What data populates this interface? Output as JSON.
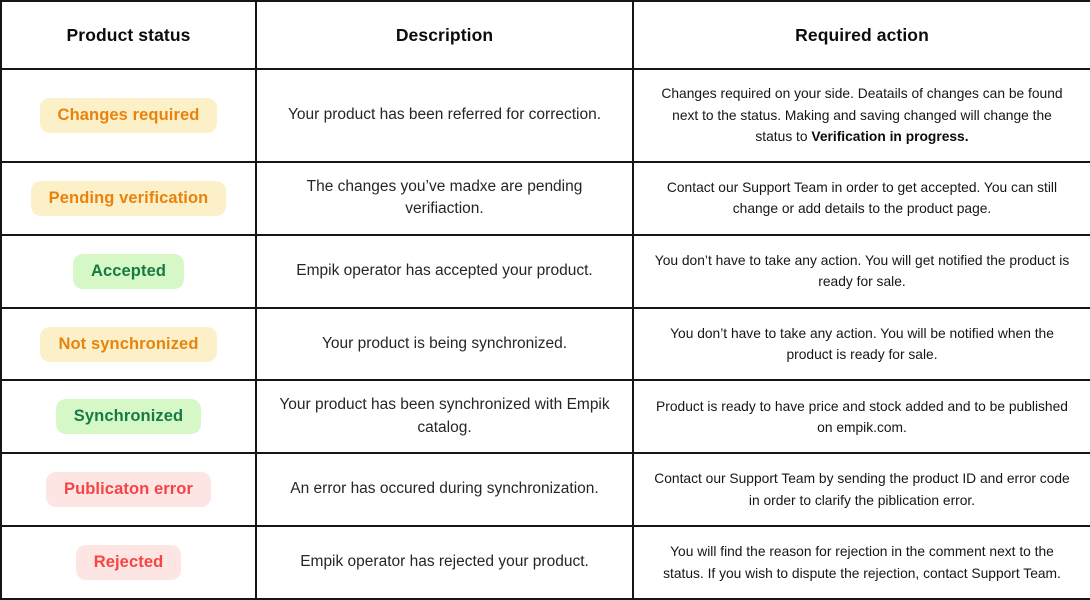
{
  "table": {
    "headers": [
      "Product status",
      "Description",
      "Required action"
    ],
    "rows": [
      {
        "status": "Changes required",
        "variant": "warning",
        "description": "Your product has been referred for correction.",
        "action": "Changes required on your side. Deatails of changes can be found next to the status. Making and saving changed will change the status to ",
        "action_bold": "Verification in progress."
      },
      {
        "status": "Pending verification",
        "variant": "warning",
        "description": "The changes you’ve madxe are pending verifiaction.",
        "action": "Contact our Support Team in order to get accepted. You can still change or add details to the product page.",
        "action_bold": ""
      },
      {
        "status": "Accepted",
        "variant": "success",
        "description": "Empik operator has accepted your product.",
        "action": "You don’t have to take any action. You will get notified the product is ready for sale.",
        "action_bold": ""
      },
      {
        "status": "Not synchronized",
        "variant": "warning",
        "description": "Your product is being synchronized.",
        "action": "You don’t have to take any action. You will be notified when the product is ready for sale.",
        "action_bold": ""
      },
      {
        "status": "Synchronized",
        "variant": "success",
        "description": "Your product has been synchronized with Empik catalog.",
        "action": "Product is ready to have price and stock added and to be published on empik.com.",
        "action_bold": ""
      },
      {
        "status": "Publicaton error",
        "variant": "error",
        "description": "An error has occured during synchronization.",
        "action": "Contact our Support Team by sending the product ID and error code in order to clarify the piblication error.",
        "action_bold": ""
      },
      {
        "status": "Rejected",
        "variant": "error",
        "description": "Empik operator has rejected your product.",
        "action": "You will find the reason for rejection in the comment next to the status. If you wish to dispute the rejection, contact Support Team.",
        "action_bold": ""
      }
    ],
    "colors": {
      "warning_badge_bg": "#FCF0C8",
      "warning_badge_text": "#E8830D",
      "success_badge_bg": "#D6F8C6",
      "success_badge_text": "#177A46",
      "error_badge_bg": "#FDE5E4",
      "error_badge_text": "#F64444",
      "border": "#151515",
      "body_text": "#262626"
    }
  }
}
